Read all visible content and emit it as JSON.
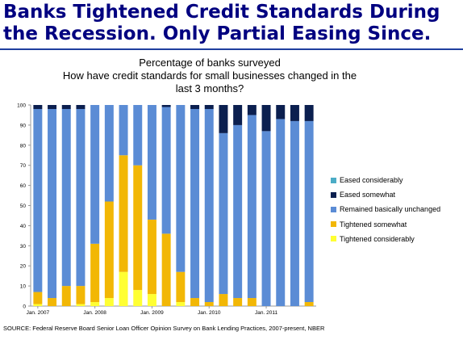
{
  "headline": {
    "line1": "Banks Tightened Credit Standards During",
    "line2": "the Recession. Only Partial Easing Since."
  },
  "source": "SOURCE: Federal Reserve Board Senior Loan Officer Opinion Survey on Bank Lending Practices, 2007-present, NBER",
  "colors": {
    "headline": "#000080",
    "eased_considerably": "#4bacc6",
    "eased_somewhat": "#0b1f4f",
    "remained_basically_unchanged": "#5b8cd5",
    "tightened_somewhat": "#f2b705",
    "tightened_considerably": "#ffff33"
  },
  "chart_data": {
    "type": "bar",
    "stacked": true,
    "title": "Percentage of banks surveyed",
    "subtitle": "How have credit standards for small businesses changed in the last 3 months?",
    "ylim": [
      0,
      100
    ],
    "yticks": [
      0,
      10,
      20,
      30,
      40,
      50,
      60,
      70,
      80,
      90,
      100
    ],
    "xtick_labels": [
      {
        "index": 0,
        "label": "Jan. 2007"
      },
      {
        "index": 4,
        "label": "Jan. 2008"
      },
      {
        "index": 8,
        "label": "Jan. 2009"
      },
      {
        "index": 12,
        "label": "Jan. 2010"
      },
      {
        "index": 16,
        "label": "Jan. 2011"
      }
    ],
    "legend_position": "right",
    "series": [
      {
        "name": "Tightened considerably",
        "color_key": "tightened_considerably",
        "values": [
          1,
          0,
          0,
          1,
          2,
          4,
          17,
          8,
          6,
          0,
          2,
          0,
          0,
          0,
          0,
          0,
          0,
          0,
          0,
          0
        ]
      },
      {
        "name": "Tightened somewhat",
        "color_key": "tightened_somewhat",
        "values": [
          6,
          4,
          10,
          9,
          29,
          48,
          58,
          62,
          37,
          36,
          15,
          4,
          2,
          6,
          4,
          4,
          0,
          0,
          0,
          2
        ]
      },
      {
        "name": "Remained basically unchanged",
        "color_key": "remained_basically_unchanged",
        "values": [
          91,
          94,
          88,
          88,
          69,
          48,
          25,
          30,
          57,
          63,
          83,
          94,
          96,
          80,
          86,
          91,
          87,
          93,
          92,
          90
        ]
      },
      {
        "name": "Eased somewhat",
        "color_key": "eased_somewhat",
        "values": [
          2,
          2,
          2,
          2,
          0,
          0,
          0,
          0,
          0,
          1,
          0,
          2,
          2,
          14,
          10,
          5,
          13,
          7,
          8,
          8
        ]
      },
      {
        "name": "Eased considerably",
        "color_key": "eased_considerably",
        "values": [
          0,
          0,
          0,
          0,
          0,
          0,
          0,
          0,
          0,
          0,
          0,
          0,
          0,
          0,
          0,
          0,
          0,
          0,
          0,
          0
        ]
      }
    ],
    "legend_order": [
      "Eased considerably",
      "Eased somewhat",
      "Remained basically unchanged",
      "Tightened somewhat",
      "Tightened considerably"
    ]
  }
}
